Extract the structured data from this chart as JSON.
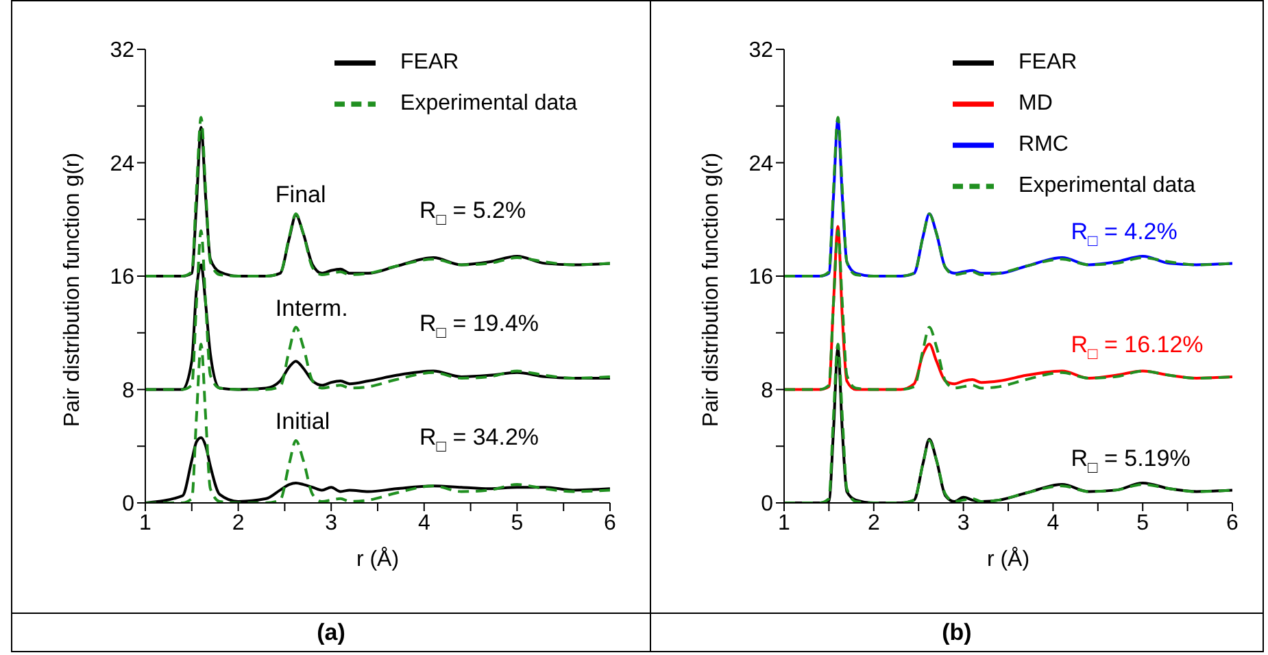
{
  "chart_data": [
    {
      "type": "line",
      "xlabel": "r (Å)",
      "ylabel": "Pair distribution function g(r)",
      "xlim": [
        1,
        6
      ],
      "ylim": [
        0,
        32
      ],
      "xticks": [
        1,
        {
          "value": 1.5,
          "label": null
        },
        2,
        {
          "value": 2.5,
          "label": null
        },
        3,
        {
          "value": 3.5,
          "label": null
        },
        4,
        {
          "value": 4.5,
          "label": null
        },
        5,
        {
          "value": 5.5,
          "label": null
        },
        6
      ],
      "yticks": [
        0,
        {
          "value": 4,
          "label": null
        },
        8,
        {
          "value": 12,
          "label": null
        },
        16,
        {
          "value": 20,
          "label": null
        },
        24,
        {
          "value": 28,
          "label": null
        },
        32
      ],
      "legend": "top right",
      "grid": false,
      "marker": "none",
      "x": [
        1.0,
        1.4,
        1.5,
        1.55,
        1.6,
        1.65,
        1.7,
        1.8,
        2.0,
        2.3,
        2.45,
        2.55,
        2.62,
        2.7,
        2.8,
        2.9,
        3.0,
        3.1,
        3.2,
        3.4,
        3.7,
        4.1,
        4.4,
        4.7,
        5.0,
        5.3,
        5.6,
        6.0
      ],
      "series": [
        {
          "name": "FEAR",
          "color": "#000000",
          "line_style": "solid",
          "values": [
            16,
            16,
            16.2,
            21,
            26.5,
            21.5,
            17.2,
            16.3,
            16,
            16,
            16.2,
            18.7,
            20.3,
            19,
            16.8,
            16.2,
            16.4,
            16.5,
            16.2,
            16.2,
            16.7,
            17.3,
            16.8,
            17,
            17.4,
            16.9,
            16.8,
            16.9
          ]
        },
        {
          "color": "#000000",
          "line_style": "solid",
          "values": [
            8,
            8,
            10,
            15,
            16.8,
            14,
            10.5,
            8.1,
            8,
            8.1,
            8.6,
            9.6,
            10,
            9.5,
            8.6,
            8.3,
            8.5,
            8.6,
            8.4,
            8.6,
            9,
            9.3,
            8.9,
            9,
            9.2,
            8.9,
            8.8,
            8.8
          ]
        },
        {
          "color": "#000000",
          "line_style": "solid",
          "values": [
            0,
            0.5,
            3,
            4.3,
            4.6,
            4,
            2.6,
            0.6,
            0.1,
            0.3,
            0.9,
            1.3,
            1.4,
            1.3,
            1.1,
            0.9,
            1.1,
            0.8,
            0.9,
            0.8,
            1,
            1.2,
            1.1,
            1,
            1.1,
            1.1,
            0.9,
            1
          ]
        },
        {
          "name": "Experimental data",
          "color": "#209020",
          "line_style": "dashed",
          "values": [
            16,
            16,
            16.3,
            22,
            27.2,
            22,
            17,
            16.1,
            16,
            16,
            16.2,
            18.8,
            20.4,
            19,
            16.6,
            16.1,
            16.2,
            16.3,
            16.1,
            16.2,
            16.7,
            17.2,
            16.8,
            16.9,
            17.3,
            17,
            16.8,
            16.9
          ]
        },
        {
          "color": "#209020",
          "line_style": "dashed",
          "values": [
            8,
            8,
            8.3,
            14,
            19.2,
            14,
            9,
            8.1,
            8,
            8,
            8.2,
            10.8,
            12.4,
            11,
            8.6,
            8.1,
            8.2,
            8.3,
            8.1,
            8.2,
            8.7,
            9.2,
            8.8,
            8.9,
            9.3,
            9,
            8.8,
            8.9
          ]
        },
        {
          "color": "#209020",
          "line_style": "dashed",
          "values": [
            0,
            0,
            0.3,
            6,
            11.2,
            6,
            1,
            0.1,
            0,
            0,
            0.2,
            2.8,
            4.4,
            3,
            0.6,
            0.1,
            0.2,
            0.3,
            0.1,
            0.2,
            0.7,
            1.2,
            0.8,
            0.9,
            1.3,
            1,
            0.8,
            0.9
          ]
        }
      ],
      "annotations": [
        "Final",
        "Interm.",
        "Initial",
        "R$_{□}$ = 5.2%",
        "R$_{□}$ = 19.4%",
        "R$_{□}$ = 34.2%",
        "(a)"
      ]
    },
    {
      "type": "line",
      "xlabel": "r (Å)",
      "ylabel": "Pair distribution function g(r)",
      "xlim": [
        1,
        6
      ],
      "ylim": [
        0,
        32
      ],
      "xticks": [
        1,
        {
          "value": 1.5,
          "label": null
        },
        2,
        {
          "value": 2.5,
          "label": null
        },
        3,
        {
          "value": 3.5,
          "label": null
        },
        4,
        {
          "value": 4.5,
          "label": null
        },
        5,
        {
          "value": 5.5,
          "label": null
        },
        6
      ],
      "yticks": [
        0,
        {
          "value": 4,
          "label": null
        },
        8,
        {
          "value": 12,
          "label": null
        },
        16,
        {
          "value": 20,
          "label": null
        },
        24,
        {
          "value": 28,
          "label": null
        },
        32
      ],
      "legend": "top right",
      "grid": false,
      "marker": "none",
      "x": [
        1.0,
        1.4,
        1.5,
        1.55,
        1.6,
        1.65,
        1.7,
        1.8,
        2.0,
        2.3,
        2.45,
        2.55,
        2.62,
        2.7,
        2.8,
        2.9,
        3.0,
        3.1,
        3.2,
        3.4,
        3.7,
        4.1,
        4.4,
        4.7,
        5.0,
        5.3,
        5.6,
        6.0
      ],
      "series": [
        {
          "name": "FEAR",
          "color": "#000000",
          "line_style": "solid",
          "values": [
            0,
            0,
            0.1,
            5,
            10.9,
            5,
            0.8,
            0.2,
            0,
            0,
            0.2,
            2.8,
            4.5,
            3,
            0.5,
            0.1,
            0.4,
            0.2,
            0.1,
            0.2,
            0.7,
            1.3,
            0.8,
            0.9,
            1.4,
            1,
            0.8,
            0.9
          ]
        },
        {
          "name": "MD",
          "color": "#ff0000",
          "line_style": "solid",
          "values": [
            8,
            8,
            8.2,
            14,
            19.5,
            13,
            8.6,
            8,
            8,
            8,
            8.4,
            10.5,
            11.2,
            10,
            8.6,
            8.4,
            8.6,
            8.7,
            8.5,
            8.6,
            9,
            9.3,
            8.8,
            9,
            9.3,
            9,
            8.8,
            8.9
          ]
        },
        {
          "name": "RMC",
          "color": "#0000ff",
          "line_style": "solid",
          "values": [
            16,
            16,
            16.2,
            21.5,
            27,
            21.5,
            17,
            16.2,
            16,
            16,
            16.2,
            18.8,
            20.4,
            19,
            16.6,
            16.2,
            16.3,
            16.4,
            16.2,
            16.2,
            16.7,
            17.3,
            16.8,
            17,
            17.4,
            16.9,
            16.8,
            16.9
          ]
        },
        {
          "name": "Experimental data",
          "color": "#209020",
          "line_style": "dashed",
          "values": [
            16,
            16,
            16.3,
            22,
            27.2,
            22,
            17,
            16.1,
            16,
            16,
            16.2,
            18.8,
            20.4,
            19,
            16.6,
            16.1,
            16.2,
            16.3,
            16.1,
            16.2,
            16.7,
            17.2,
            16.8,
            16.9,
            17.3,
            17,
            16.8,
            16.9
          ]
        },
        {
          "color": "#209020",
          "line_style": "dashed",
          "values": [
            8,
            8,
            8.3,
            14,
            19.2,
            14,
            9,
            8.1,
            8,
            8,
            8.2,
            10.8,
            12.4,
            11,
            8.6,
            8.1,
            8.2,
            8.3,
            8.1,
            8.2,
            8.7,
            9.2,
            8.8,
            8.9,
            9.3,
            9,
            8.8,
            8.9
          ]
        },
        {
          "color": "#209020",
          "line_style": "dashed",
          "values": [
            0,
            0,
            0.3,
            6,
            11.2,
            6,
            1,
            0.1,
            0,
            0,
            0.2,
            2.8,
            4.4,
            3,
            0.6,
            0.1,
            0.2,
            0.3,
            0.1,
            0.2,
            0.7,
            1.2,
            0.8,
            0.9,
            1.3,
            1,
            0.8,
            0.9
          ]
        }
      ],
      "annotations": [
        "R$_{□}$ = 4.2%",
        "R$_{□}$ = 16.12%",
        "R$_{□}$ = 5.19%",
        "(b)"
      ]
    }
  ]
}
